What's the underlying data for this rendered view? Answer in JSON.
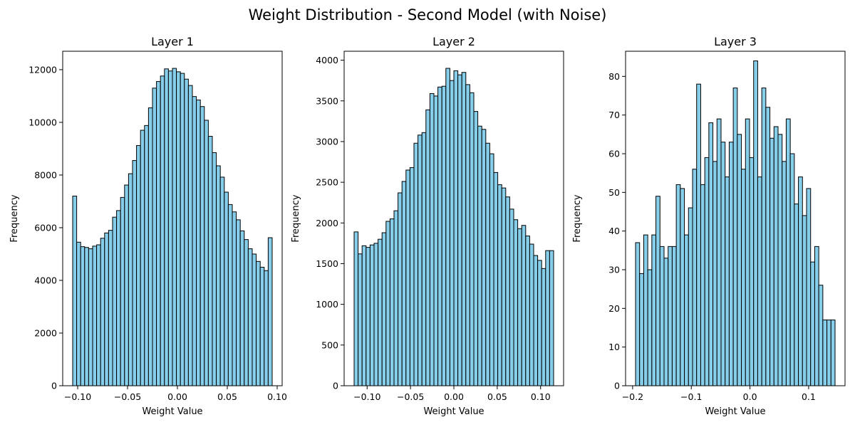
{
  "figure": {
    "suptitle": "Weight Distribution - Second Model (with Noise)",
    "bar_color": "#87CEEB",
    "edge_color": "#000000"
  },
  "chart_data": [
    {
      "type": "bar",
      "title": "Layer 1",
      "xlabel": "Weight Value",
      "ylabel": "Frequency",
      "bin_range": [
        -0.105,
        0.095
      ],
      "xlim": [
        -0.115,
        0.105
      ],
      "ylim": [
        0,
        12700
      ],
      "xticks": [
        -0.1,
        -0.05,
        0.0,
        0.05,
        0.1
      ],
      "xtick_labels": [
        "−0.10",
        "−0.05",
        "0.00",
        "0.05",
        "0.10"
      ],
      "yticks": [
        0,
        2000,
        4000,
        6000,
        8000,
        10000,
        12000
      ],
      "ytick_labels": [
        "0",
        "2000",
        "4000",
        "6000",
        "8000",
        "10000",
        "12000"
      ],
      "values": [
        7200,
        5450,
        5280,
        5250,
        5200,
        5300,
        5350,
        5600,
        5800,
        5900,
        6400,
        6650,
        7150,
        7620,
        8050,
        8550,
        9120,
        9700,
        9880,
        10550,
        11300,
        11550,
        11760,
        12030,
        11950,
        12050,
        11920,
        11860,
        11640,
        11400,
        10980,
        10850,
        10600,
        10080,
        9470,
        8850,
        8350,
        7920,
        7350,
        6880,
        6600,
        6300,
        5880,
        5550,
        5200,
        5000,
        4720,
        4500,
        4370,
        5620
      ]
    },
    {
      "type": "bar",
      "title": "Layer 2",
      "xlabel": "Weight Value",
      "ylabel": "Frequency",
      "bin_range": [
        -0.115,
        0.115
      ],
      "xlim": [
        -0.1265,
        0.1265
      ],
      "ylim": [
        0,
        4110
      ],
      "xticks": [
        -0.1,
        -0.05,
        0.0,
        0.05,
        0.1
      ],
      "xtick_labels": [
        "−0.10",
        "−0.05",
        "0.00",
        "0.05",
        "0.10"
      ],
      "yticks": [
        0,
        500,
        1000,
        1500,
        2000,
        2500,
        3000,
        3500,
        4000
      ],
      "ytick_labels": [
        "0",
        "500",
        "1000",
        "1500",
        "2000",
        "2500",
        "3000",
        "3500",
        "4000"
      ],
      "values": [
        1890,
        1620,
        1720,
        1700,
        1730,
        1750,
        1800,
        1880,
        2020,
        2050,
        2150,
        2370,
        2510,
        2650,
        2680,
        2980,
        3080,
        3110,
        3390,
        3590,
        3560,
        3670,
        3680,
        3900,
        3750,
        3870,
        3820,
        3850,
        3700,
        3600,
        3370,
        3190,
        3150,
        2980,
        2850,
        2620,
        2470,
        2430,
        2320,
        2170,
        2040,
        1930,
        1970,
        1840,
        1740,
        1600,
        1540,
        1440,
        1660,
        1660
      ]
    },
    {
      "type": "bar",
      "title": "Layer 3",
      "xlabel": "Weight Value",
      "ylabel": "Frequency",
      "bin_range": [
        -0.195,
        0.145
      ],
      "xlim": [
        -0.212,
        0.162
      ],
      "ylim": [
        0,
        86.5
      ],
      "xticks": [
        -0.2,
        -0.1,
        0.0,
        0.1
      ],
      "xtick_labels": [
        "−0.2",
        "−0.1",
        "0.0",
        "0.1"
      ],
      "yticks": [
        0,
        10,
        20,
        30,
        40,
        50,
        60,
        70,
        80
      ],
      "ytick_labels": [
        "0",
        "10",
        "20",
        "30",
        "40",
        "50",
        "60",
        "70",
        "80"
      ],
      "values": [
        37,
        29,
        39,
        30,
        39,
        49,
        36,
        33,
        36,
        36,
        52,
        51,
        39,
        46,
        56,
        78,
        52,
        59,
        68,
        58,
        69,
        63,
        54,
        63,
        77,
        65,
        56,
        69,
        59,
        84,
        54,
        77,
        72,
        64,
        67,
        65,
        58,
        69,
        60,
        47,
        54,
        44,
        51,
        32,
        36,
        26,
        17,
        17,
        17
      ]
    }
  ]
}
